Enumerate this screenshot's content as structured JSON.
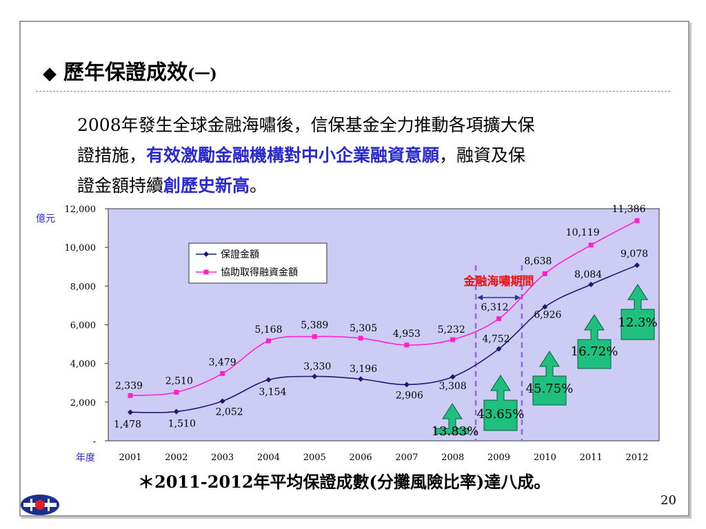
{
  "slide": {
    "title_mark": "◆",
    "title": "歷年保證成效",
    "title_suffix": "(一)",
    "intro": {
      "line1": "2008年發生全球金融海嘯後，信保基金全力推動各項擴大保",
      "line2_a": "證措施，",
      "line2_hl": "有效激勵金融機構對中小企業融資意願",
      "line2_b": "，融資及保",
      "line3_a": "證金額持續",
      "line3_hl": "創歷史新高",
      "line3_b": "。"
    },
    "footnote": "＊2011-2012年平均保證成數(分攤風險比率)達八成。",
    "page_number": "20"
  },
  "chart_data": {
    "type": "line",
    "ylabel": "億元",
    "xlabel": "年度",
    "ylim": [
      0,
      12000
    ],
    "yticks": [
      0,
      2000,
      4000,
      6000,
      8000,
      10000,
      12000
    ],
    "ytick_labels": [
      "-",
      "2,000",
      "4,000",
      "6,000",
      "8,000",
      "10,000",
      "12,000"
    ],
    "categories": [
      "2001",
      "2002",
      "2003",
      "2004",
      "2005",
      "2006",
      "2007",
      "2008",
      "2009",
      "2010",
      "2011",
      "2012"
    ],
    "series": [
      {
        "name": "保證金額",
        "color": "#1a1a6e",
        "marker": "diamond",
        "values": [
          1478,
          1510,
          2052,
          3154,
          3330,
          3196,
          2906,
          3308,
          4752,
          6926,
          8084,
          9078
        ],
        "labels": [
          "1,478",
          "1,510",
          "2,052",
          "3,154",
          "3,330",
          "3,196",
          "2,906",
          "3,308",
          "4,752",
          "6,926",
          "8,084",
          "9,078"
        ]
      },
      {
        "name": "協助取得融資金額",
        "color": "#ff22cc",
        "marker": "square",
        "values": [
          2339,
          2510,
          3479,
          5168,
          5389,
          5305,
          4953,
          5232,
          6312,
          8638,
          10119,
          11386
        ],
        "labels": [
          "2,339",
          "2,510",
          "3,479",
          "5,168",
          "5,389",
          "5,305",
          "4,953",
          "5,232",
          "6,312",
          "8,638",
          "10,119",
          "11,386"
        ]
      }
    ],
    "legend_position": "top-left",
    "background_color": "#ccccf5",
    "annotation": {
      "text": "金融海嘯期間",
      "color": "#ee1111",
      "start_between": [
        "2008",
        "2009"
      ],
      "end_between": [
        "2009",
        "2010"
      ]
    },
    "growth_arrows": [
      {
        "year": "2008",
        "text": "13.83%"
      },
      {
        "year": "2009",
        "text": "43.65%"
      },
      {
        "year": "2010",
        "text": "45.75%"
      },
      {
        "year": "2011",
        "text": "16.72%"
      },
      {
        "year": "2012",
        "text": "12.3%"
      }
    ],
    "arrow_color": "#1fbf7f"
  }
}
